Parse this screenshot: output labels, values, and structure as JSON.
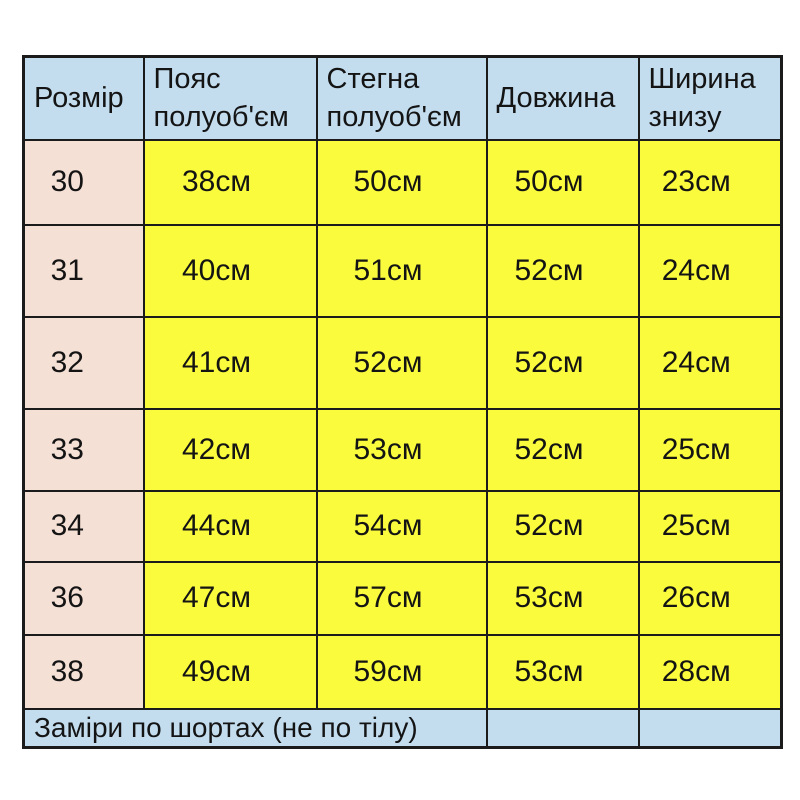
{
  "theme": {
    "header_bg": "#c3ddef",
    "size_column_bg": "#f5e0d5",
    "value_cell_bg": "#fbfb3d",
    "border_color": "#1b1b1b",
    "page_bg": "#ffffff",
    "text_color": "#141414"
  },
  "chart_data": {
    "type": "table",
    "columns": [
      "Розмір",
      "Пояс полуоб'єм",
      "Стегна полуоб'єм",
      "Довжина",
      "Ширина знизу"
    ],
    "rows": [
      [
        "30",
        "38см",
        "50см",
        "50см",
        "23см"
      ],
      [
        "31",
        "40см",
        "51см",
        "52см",
        "24см"
      ],
      [
        "32",
        "41см",
        "52см",
        "52см",
        "24см"
      ],
      [
        "33",
        "42см",
        "53см",
        "52см",
        "25см"
      ],
      [
        "34",
        "44см",
        "54см",
        "52см",
        "25см"
      ],
      [
        "36",
        "47см",
        "57см",
        "53см",
        "26см"
      ],
      [
        "38",
        "49см",
        "59см",
        "53см",
        "28см"
      ]
    ],
    "footer": "Заміри по шортах (не по тілу)",
    "title": "",
    "notes": "Size chart for shorts; measurements in centimeters taken on the garment, not the body"
  }
}
